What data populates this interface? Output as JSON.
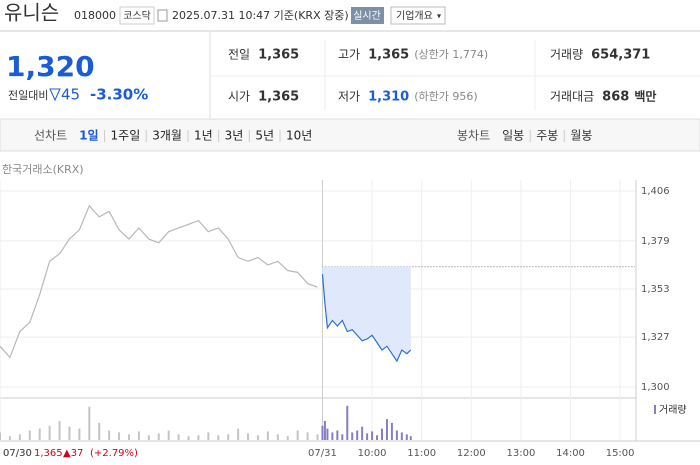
{
  "header": {
    "name": "유니슨",
    "code": "018000",
    "market": "코스닥",
    "timestamp": "2025.07.31 10:47 기준(KRX 장중)",
    "realtime_button": "실시간",
    "company_button": "기업개요"
  },
  "quote": {
    "price": "1,320",
    "change_label": "전일대비",
    "change": "45",
    "change_pct": "-3.30%"
  },
  "stats": [
    {
      "label": "전일",
      "value": "1,365"
    },
    {
      "label": "고가",
      "value": "1,365",
      "note": "(상한가 1,774)"
    },
    {
      "label": "거래량",
      "value": "654,371"
    },
    {
      "label": "시가",
      "value": "1,365"
    },
    {
      "label": "저가",
      "value": "1,310",
      "note": "(하한가 956)"
    },
    {
      "label": "거래대금",
      "value": "868",
      "unit": "백만"
    }
  ],
  "tabs": {
    "line_label": "선차트",
    "periods": [
      "1일",
      "1주일",
      "3개월",
      "1년",
      "3년",
      "5년",
      "10년"
    ],
    "candle_label": "봉차트",
    "candles": [
      "일봉",
      "주봉",
      "월봉"
    ]
  },
  "chart_data": {
    "type": "line",
    "source": "한국거래소(KRX)",
    "volume_label": "거래량",
    "footer": {
      "date": "07/30",
      "price": "1,365",
      "change": "▲37",
      "pct": "(+2.79%)"
    },
    "xlim": [
      0,
      12.8
    ],
    "ylim": [
      1300,
      1406
    ],
    "yticks": [
      {
        "value": 1406,
        "label": "1,406"
      },
      {
        "value": 1379,
        "label": "1,379"
      },
      {
        "value": 1353,
        "label": "1,353"
      },
      {
        "value": 1327,
        "label": "1,327"
      },
      {
        "value": 1300,
        "label": "1,300"
      }
    ],
    "xticks": [
      {
        "value": 0,
        "label": "07/30"
      },
      {
        "value": 6.5,
        "label": "07/31"
      },
      {
        "value": 7.5,
        "label": "10:00"
      },
      {
        "value": 8.5,
        "label": "11:00"
      },
      {
        "value": 9.5,
        "label": "12:00"
      },
      {
        "value": 10.5,
        "label": "13:00"
      },
      {
        "value": 11.5,
        "label": "14:00"
      },
      {
        "value": 12.5,
        "label": "15:00"
      }
    ],
    "reference": 1365,
    "series": [
      {
        "color": "#b8b8b8",
        "x": [
          0,
          0.2,
          0.4,
          0.6,
          0.8,
          1.0,
          1.2,
          1.4,
          1.6,
          1.8,
          2.0,
          2.2,
          2.4,
          2.6,
          2.8,
          3.0,
          3.2,
          3.4,
          3.6,
          3.8,
          4.0,
          4.2,
          4.4,
          4.6,
          4.8,
          5.0,
          5.2,
          5.4,
          5.6,
          5.8,
          6.0,
          6.2,
          6.4
        ],
        "values": [
          1322,
          1316,
          1330,
          1335,
          1350,
          1368,
          1372,
          1380,
          1385,
          1398,
          1392,
          1395,
          1385,
          1380,
          1386,
          1380,
          1378,
          1384,
          1386,
          1388,
          1390,
          1384,
          1386,
          1380,
          1370,
          1368,
          1370,
          1366,
          1368,
          1363,
          1362,
          1356,
          1354
        ]
      },
      {
        "color": "#2f6fcf",
        "shade": true,
        "x": [
          6.5,
          6.55,
          6.6,
          6.7,
          6.8,
          6.9,
          7.0,
          7.1,
          7.2,
          7.3,
          7.4,
          7.5,
          7.6,
          7.7,
          7.8,
          7.9,
          8.0,
          8.1,
          8.2,
          8.28
        ],
        "values": [
          1361,
          1345,
          1332,
          1336,
          1333,
          1336,
          1330,
          1331,
          1328,
          1325,
          1326,
          1328,
          1324,
          1320,
          1322,
          1318,
          1314,
          1320,
          1318,
          1320
        ]
      }
    ],
    "volume_ylim": [
      0,
      40
    ],
    "volume": [
      {
        "color": "#c4c4c4",
        "x": [
          0,
          0.2,
          0.4,
          0.6,
          0.8,
          1.0,
          1.2,
          1.4,
          1.6,
          1.8,
          2.0,
          2.2,
          2.4,
          2.6,
          2.8,
          3.0,
          3.2,
          3.4,
          3.6,
          3.8,
          4.0,
          4.2,
          4.4,
          4.6,
          4.8,
          5.0,
          5.2,
          5.4,
          5.6,
          5.8,
          6.0,
          6.2,
          6.4
        ],
        "values": [
          8,
          4,
          6,
          10,
          12,
          15,
          20,
          14,
          12,
          35,
          18,
          10,
          8,
          6,
          9,
          5,
          7,
          10,
          6,
          4,
          5,
          8,
          5,
          6,
          12,
          7,
          5,
          9,
          6,
          4,
          10,
          8,
          6
        ]
      },
      {
        "color": "#8a7cc4",
        "x": [
          6.5,
          6.55,
          6.6,
          6.7,
          6.8,
          6.9,
          7.0,
          7.1,
          7.2,
          7.3,
          7.4,
          7.5,
          7.6,
          7.7,
          7.8,
          7.9,
          8.0,
          8.1,
          8.2,
          8.28
        ],
        "values": [
          15,
          20,
          12,
          8,
          10,
          6,
          36,
          8,
          10,
          14,
          7,
          9,
          5,
          12,
          22,
          18,
          10,
          8,
          6,
          4
        ]
      }
    ]
  }
}
